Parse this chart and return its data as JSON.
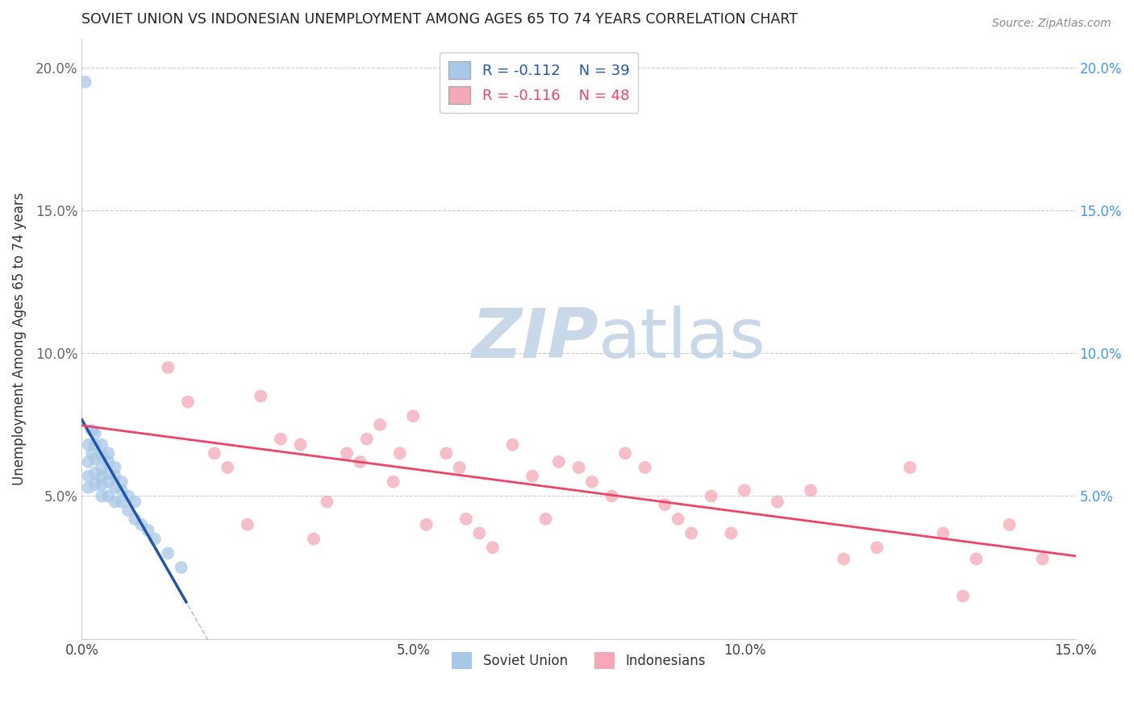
{
  "title": "SOVIET UNION VS INDONESIAN UNEMPLOYMENT AMONG AGES 65 TO 74 YEARS CORRELATION CHART",
  "source": "Source: ZipAtlas.com",
  "ylabel": "Unemployment Among Ages 65 to 74 years",
  "xlim": [
    0.0,
    0.15
  ],
  "ylim": [
    0.0,
    0.21
  ],
  "xticks": [
    0.0,
    0.05,
    0.1,
    0.15
  ],
  "xticklabels": [
    "0.0%",
    "5.0%",
    "10.0%",
    "15.0%"
  ],
  "yticks_left": [
    0.0,
    0.05,
    0.1,
    0.15,
    0.2
  ],
  "yticklabels_left": [
    "",
    "5.0%",
    "10.0%",
    "15.0%",
    "20.0%"
  ],
  "yticks_right": [
    0.0,
    0.05,
    0.1,
    0.15,
    0.2
  ],
  "yticklabels_right": [
    "",
    "5.0%",
    "10.0%",
    "15.0%",
    "20.0%"
  ],
  "grid_yticks": [
    0.05,
    0.1,
    0.15,
    0.2
  ],
  "grid_color": "#cccccc",
  "soviet_color": "#a8c8e8",
  "indonesian_color": "#f4a8b8",
  "soviet_line_color": "#2255aa",
  "indonesian_line_color": "#ee4466",
  "dashed_line_color": "#b0c8d8",
  "legend_r_soviet": "R = -0.112",
  "legend_n_soviet": "N = 39",
  "legend_r_indonesian": "R = -0.116",
  "legend_n_indonesian": "N = 48",
  "soviet_x": [
    0.0005,
    0.001,
    0.001,
    0.001,
    0.001,
    0.0015,
    0.0015,
    0.002,
    0.002,
    0.002,
    0.002,
    0.002,
    0.003,
    0.003,
    0.003,
    0.003,
    0.003,
    0.003,
    0.004,
    0.004,
    0.004,
    0.004,
    0.004,
    0.005,
    0.005,
    0.005,
    0.005,
    0.006,
    0.006,
    0.006,
    0.007,
    0.007,
    0.008,
    0.008,
    0.009,
    0.01,
    0.011,
    0.013,
    0.015
  ],
  "soviet_y": [
    0.195,
    0.068,
    0.062,
    0.057,
    0.053,
    0.073,
    0.065,
    0.072,
    0.068,
    0.063,
    0.058,
    0.054,
    0.068,
    0.064,
    0.06,
    0.057,
    0.054,
    0.05,
    0.065,
    0.062,
    0.058,
    0.055,
    0.05,
    0.06,
    0.057,
    0.053,
    0.048,
    0.055,
    0.052,
    0.048,
    0.05,
    0.045,
    0.048,
    0.042,
    0.04,
    0.038,
    0.035,
    0.03,
    0.025
  ],
  "indonesian_x": [
    0.013,
    0.016,
    0.02,
    0.022,
    0.025,
    0.027,
    0.03,
    0.033,
    0.035,
    0.037,
    0.04,
    0.042,
    0.043,
    0.045,
    0.047,
    0.048,
    0.05,
    0.052,
    0.055,
    0.057,
    0.058,
    0.06,
    0.062,
    0.065,
    0.068,
    0.07,
    0.072,
    0.075,
    0.077,
    0.08,
    0.082,
    0.085,
    0.088,
    0.09,
    0.092,
    0.095,
    0.098,
    0.1,
    0.105,
    0.11,
    0.115,
    0.12,
    0.125,
    0.13,
    0.133,
    0.135,
    0.14,
    0.145
  ],
  "indonesian_y": [
    0.095,
    0.083,
    0.065,
    0.06,
    0.04,
    0.085,
    0.07,
    0.068,
    0.035,
    0.048,
    0.065,
    0.062,
    0.07,
    0.075,
    0.055,
    0.065,
    0.078,
    0.04,
    0.065,
    0.06,
    0.042,
    0.037,
    0.032,
    0.068,
    0.057,
    0.042,
    0.062,
    0.06,
    0.055,
    0.05,
    0.065,
    0.06,
    0.047,
    0.042,
    0.037,
    0.05,
    0.037,
    0.052,
    0.048,
    0.052,
    0.028,
    0.032,
    0.06,
    0.037,
    0.015,
    0.028,
    0.04,
    0.028
  ],
  "background_color": "#ffffff",
  "watermark_zip_color": "#c8d8e8",
  "watermark_atlas_color": "#c8d8e8",
  "marker_size": 130,
  "marker_alpha": 0.75
}
